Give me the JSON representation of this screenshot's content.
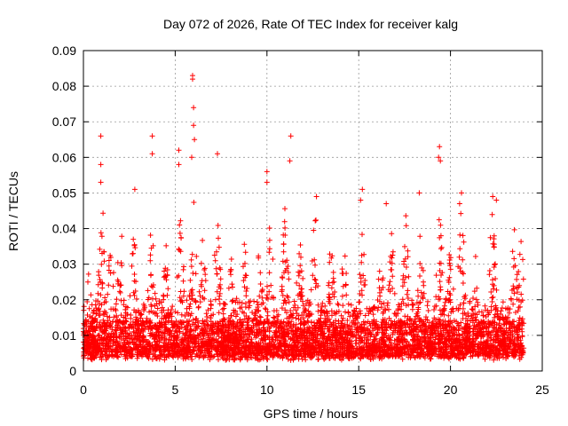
{
  "chart_data": {
    "type": "scatter",
    "title": "Day 072 of 2026, Rate Of TEC Index for receiver kalg",
    "xlabel": "GPS time / hours",
    "ylabel": "ROTI / TECUs",
    "xlim": [
      0,
      25
    ],
    "ylim": [
      0,
      0.09
    ],
    "x_ticks": [
      0,
      5,
      10,
      15,
      20,
      25
    ],
    "x_tick_labels": [
      "0",
      "5",
      "10",
      "15",
      "20",
      "25"
    ],
    "y_ticks": [
      0,
      0.01,
      0.02,
      0.03,
      0.04,
      0.05,
      0.06,
      0.07,
      0.08,
      0.09
    ],
    "y_tick_labels": [
      "0",
      "0.01",
      "0.02",
      "0.03",
      "0.04",
      "0.05",
      "0.06",
      "0.07",
      "0.08",
      "0.09"
    ],
    "grid": true,
    "marker": "+",
    "color": "#ff0000",
    "series": [
      {
        "name": "ROTI",
        "x_range_hours": [
          0,
          24
        ],
        "typical_range": [
          0.005,
          0.035
        ],
        "notable_points": [
          {
            "x": 0.95,
            "y": 0.066
          },
          {
            "x": 0.95,
            "y": 0.058
          },
          {
            "x": 0.95,
            "y": 0.053
          },
          {
            "x": 2.8,
            "y": 0.051
          },
          {
            "x": 3.75,
            "y": 0.066
          },
          {
            "x": 3.75,
            "y": 0.061
          },
          {
            "x": 5.2,
            "y": 0.062
          },
          {
            "x": 5.2,
            "y": 0.058
          },
          {
            "x": 5.95,
            "y": 0.083
          },
          {
            "x": 5.95,
            "y": 0.082
          },
          {
            "x": 6.0,
            "y": 0.074
          },
          {
            "x": 6.0,
            "y": 0.069
          },
          {
            "x": 6.05,
            "y": 0.065
          },
          {
            "x": 5.9,
            "y": 0.06
          },
          {
            "x": 7.3,
            "y": 0.061
          },
          {
            "x": 10.0,
            "y": 0.056
          },
          {
            "x": 10.0,
            "y": 0.053
          },
          {
            "x": 11.3,
            "y": 0.066
          },
          {
            "x": 11.25,
            "y": 0.059
          },
          {
            "x": 12.7,
            "y": 0.049
          },
          {
            "x": 15.2,
            "y": 0.051
          },
          {
            "x": 15.1,
            "y": 0.048
          },
          {
            "x": 16.5,
            "y": 0.047
          },
          {
            "x": 18.3,
            "y": 0.05
          },
          {
            "x": 19.4,
            "y": 0.063
          },
          {
            "x": 19.35,
            "y": 0.06
          },
          {
            "x": 19.45,
            "y": 0.059
          },
          {
            "x": 20.6,
            "y": 0.05
          },
          {
            "x": 20.5,
            "y": 0.047
          },
          {
            "x": 22.3,
            "y": 0.049
          },
          {
            "x": 22.5,
            "y": 0.048
          }
        ],
        "bursts": [
          {
            "x": 0.3,
            "peak": 0.03
          },
          {
            "x": 1.0,
            "peak": 0.046
          },
          {
            "x": 1.5,
            "peak": 0.038
          },
          {
            "x": 2.0,
            "peak": 0.042
          },
          {
            "x": 2.7,
            "peak": 0.045
          },
          {
            "x": 3.7,
            "peak": 0.043
          },
          {
            "x": 4.5,
            "peak": 0.035
          },
          {
            "x": 5.3,
            "peak": 0.047
          },
          {
            "x": 6.0,
            "peak": 0.047
          },
          {
            "x": 6.5,
            "peak": 0.04
          },
          {
            "x": 7.3,
            "peak": 0.044
          },
          {
            "x": 8.0,
            "peak": 0.032
          },
          {
            "x": 8.8,
            "peak": 0.035
          },
          {
            "x": 9.6,
            "peak": 0.034
          },
          {
            "x": 10.2,
            "peak": 0.045
          },
          {
            "x": 11.0,
            "peak": 0.047
          },
          {
            "x": 11.8,
            "peak": 0.042
          },
          {
            "x": 12.6,
            "peak": 0.044
          },
          {
            "x": 13.5,
            "peak": 0.04
          },
          {
            "x": 14.2,
            "peak": 0.035
          },
          {
            "x": 15.2,
            "peak": 0.046
          },
          {
            "x": 16.2,
            "peak": 0.033
          },
          {
            "x": 16.8,
            "peak": 0.04
          },
          {
            "x": 17.6,
            "peak": 0.046
          },
          {
            "x": 18.4,
            "peak": 0.042
          },
          {
            "x": 19.4,
            "peak": 0.045
          },
          {
            "x": 20.0,
            "peak": 0.035
          },
          {
            "x": 20.6,
            "peak": 0.046
          },
          {
            "x": 21.4,
            "peak": 0.032
          },
          {
            "x": 22.3,
            "peak": 0.049
          },
          {
            "x": 23.5,
            "peak": 0.04
          },
          {
            "x": 23.85,
            "peak": 0.043
          }
        ]
      }
    ]
  }
}
